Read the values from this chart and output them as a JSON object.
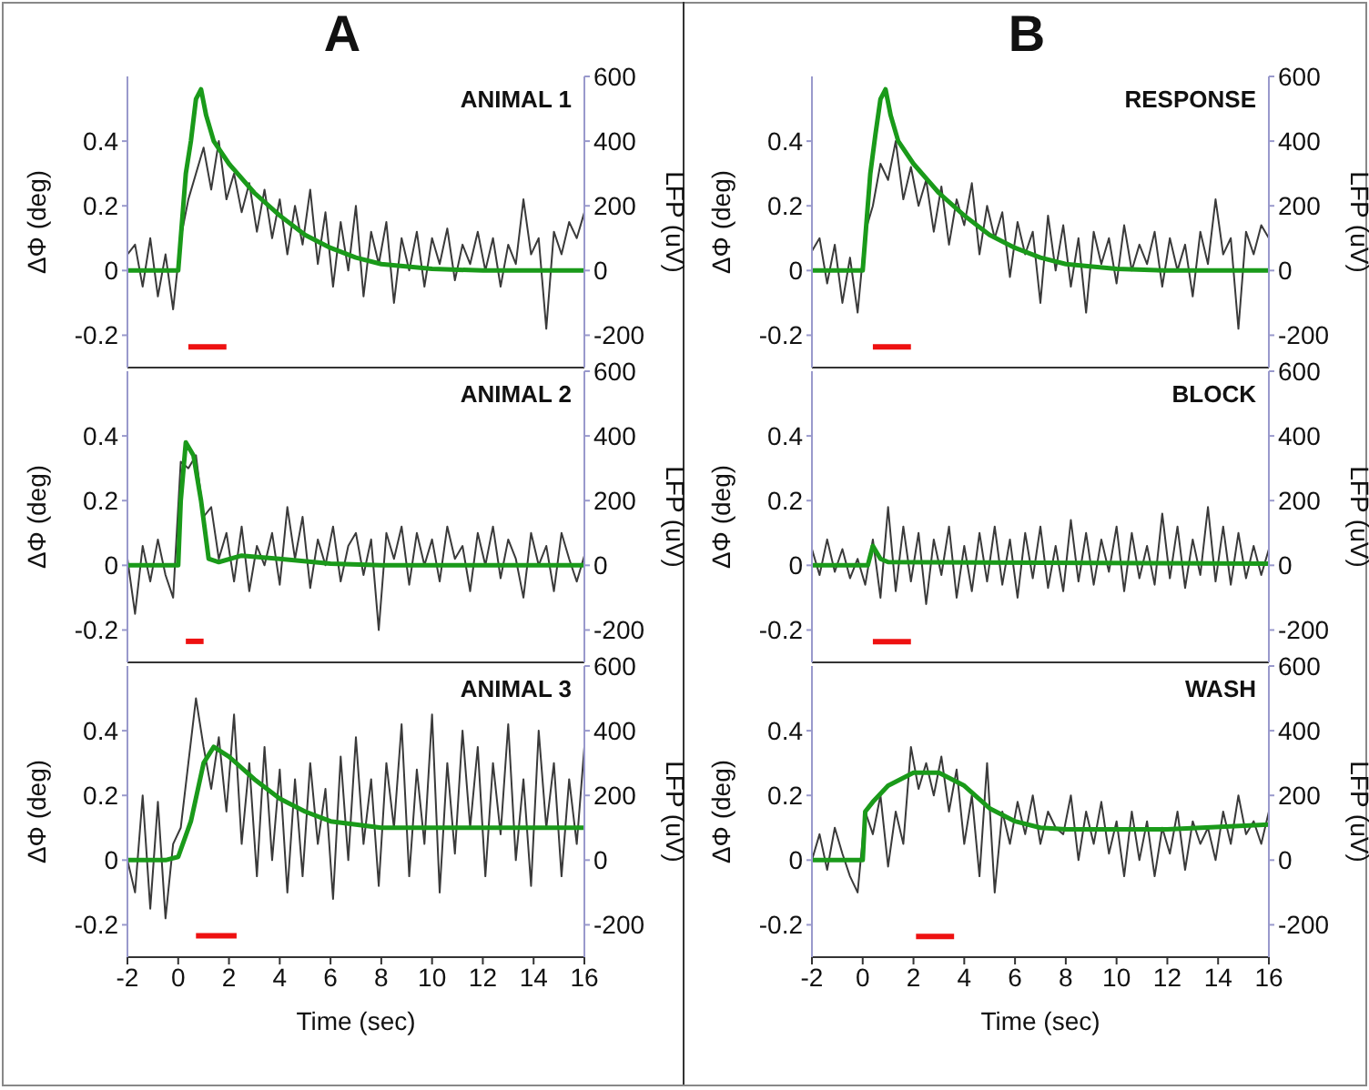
{
  "chart_data": [
    {
      "type": "line",
      "title": "A",
      "annotations": [
        "ANIMAL 1"
      ],
      "ylabel": "ΔΦ (deg)",
      "y2label": "LFP (uV)",
      "xlim": [
        -2,
        16
      ],
      "xticks": [
        -2,
        0,
        2,
        4,
        6,
        8,
        10,
        12,
        14,
        16
      ],
      "ylim": [
        -0.3,
        0.6
      ],
      "yticks": [
        -0.2,
        0,
        0.2,
        0.4
      ],
      "y2lim": [
        -300,
        600
      ],
      "y2ticks": [
        -200,
        0,
        200,
        400,
        600
      ],
      "tick_labels": "y",
      "x": [
        -2,
        -1.7,
        -1.4,
        -1.1,
        -0.8,
        -0.5,
        -0.2,
        0.1,
        0.4,
        0.7,
        1,
        1.3,
        1.6,
        1.9,
        2.2,
        2.5,
        2.8,
        3.1,
        3.4,
        3.7,
        4,
        4.3,
        4.6,
        4.9,
        5.2,
        5.5,
        5.8,
        6.1,
        6.4,
        6.7,
        7,
        7.3,
        7.6,
        7.9,
        8.2,
        8.5,
        8.8,
        9.1,
        9.4,
        9.7,
        10,
        10.3,
        10.6,
        10.9,
        11.2,
        11.5,
        11.8,
        12.1,
        12.4,
        12.7,
        13,
        13.3,
        13.6,
        13.9,
        14.2,
        14.5,
        14.8,
        15.1,
        15.4,
        15.7,
        16
      ],
      "series": [
        {
          "color": "#3a3a3a",
          "values": [
            0.05,
            0.08,
            -0.05,
            0.1,
            -0.08,
            0.05,
            -0.12,
            0.1,
            0.22,
            0.3,
            0.38,
            0.25,
            0.4,
            0.22,
            0.3,
            0.18,
            0.27,
            0.12,
            0.25,
            0.1,
            0.22,
            0.05,
            0.2,
            0.08,
            0.25,
            0.02,
            0.18,
            -0.05,
            0.15,
            0,
            0.2,
            -0.08,
            0.12,
            0.02,
            0.15,
            -0.1,
            0.1,
            0,
            0.12,
            -0.05,
            0.1,
            0.02,
            0.13,
            -0.03,
            0.08,
            0.02,
            0.12,
            0,
            0.1,
            -0.05,
            0.08,
            0.02,
            0.22,
            0.05,
            0.1,
            -0.18,
            0.12,
            0.05,
            0.15,
            0.1,
            0.18
          ]
        },
        {
          "color": "#1a9a1a",
          "axis": "y2",
          "x": [
            -2,
            0,
            0.1,
            0.3,
            0.5,
            0.7,
            0.9,
            1.1,
            1.4,
            2,
            3,
            4,
            5,
            6,
            7,
            8,
            10,
            12,
            14,
            16
          ],
          "values": [
            0,
            0,
            100,
            300,
            400,
            530,
            560,
            480,
            400,
            330,
            240,
            170,
            110,
            70,
            40,
            20,
            5,
            0,
            0,
            0
          ]
        },
        {
          "color": "#ee1111",
          "x": [
            0.4,
            1.9
          ],
          "values": [
            -0.236,
            -0.236
          ]
        }
      ]
    },
    {
      "type": "line",
      "title": "B",
      "annotations": [
        "RESPONSE"
      ],
      "ylabel": "ΔΦ (deg)",
      "y2label": "LFP (uV)",
      "xlim": [
        -2,
        16
      ],
      "xticks": [
        -2,
        0,
        2,
        4,
        6,
        8,
        10,
        12,
        14,
        16
      ],
      "ylim": [
        -0.3,
        0.6
      ],
      "yticks": [
        -0.2,
        0,
        0.2,
        0.4
      ],
      "y2lim": [
        -300,
        600
      ],
      "y2ticks": [
        -200,
        0,
        200,
        400,
        600
      ],
      "tick_labels": "y",
      "x": [
        -2,
        -1.7,
        -1.4,
        -1.1,
        -0.8,
        -0.5,
        -0.2,
        0.1,
        0.4,
        0.7,
        1,
        1.3,
        1.6,
        1.9,
        2.2,
        2.5,
        2.8,
        3.1,
        3.4,
        3.7,
        4,
        4.3,
        4.6,
        4.9,
        5.2,
        5.5,
        5.8,
        6.1,
        6.4,
        6.7,
        7,
        7.3,
        7.6,
        7.9,
        8.2,
        8.5,
        8.8,
        9.1,
        9.4,
        9.7,
        10,
        10.3,
        10.6,
        10.9,
        11.2,
        11.5,
        11.8,
        12.1,
        12.4,
        12.7,
        13,
        13.3,
        13.6,
        13.9,
        14.2,
        14.5,
        14.8,
        15.1,
        15.4,
        15.7,
        16
      ],
      "series": [
        {
          "color": "#3a3a3a",
          "values": [
            0.06,
            0.1,
            -0.04,
            0.08,
            -0.1,
            0.04,
            -0.13,
            0.12,
            0.2,
            0.33,
            0.28,
            0.4,
            0.22,
            0.32,
            0.2,
            0.28,
            0.12,
            0.26,
            0.08,
            0.22,
            0.14,
            0.27,
            0.05,
            0.2,
            0.1,
            0.18,
            -0.02,
            0.15,
            0.05,
            0.12,
            -0.1,
            0.17,
            0,
            0.14,
            -0.05,
            0.1,
            -0.13,
            0.12,
            0.02,
            0.1,
            -0.04,
            0.14,
            0,
            0.08,
            0.02,
            0.12,
            -0.05,
            0.1,
            0,
            0.08,
            -0.08,
            0.12,
            0.02,
            0.22,
            0.05,
            0.1,
            -0.18,
            0.12,
            0.05,
            0.14,
            0.1
          ]
        },
        {
          "color": "#1a9a1a",
          "axis": "y2",
          "x": [
            -2,
            0,
            0.1,
            0.3,
            0.5,
            0.7,
            0.9,
            1.1,
            1.4,
            2,
            3,
            4,
            5,
            6,
            7,
            8,
            10,
            12,
            14,
            16
          ],
          "values": [
            0,
            0,
            100,
            300,
            420,
            530,
            560,
            480,
            400,
            330,
            240,
            170,
            110,
            70,
            40,
            20,
            5,
            0,
            0,
            0
          ]
        },
        {
          "color": "#ee1111",
          "x": [
            0.4,
            1.9
          ],
          "values": [
            -0.236,
            -0.236
          ]
        }
      ]
    },
    {
      "type": "line",
      "annotations": [
        "ANIMAL 2"
      ],
      "ylabel": "ΔΦ (deg)",
      "y2label": "LFP (uV)",
      "xlim": [
        -2,
        16
      ],
      "xticks": [
        -2,
        0,
        2,
        4,
        6,
        8,
        10,
        12,
        14,
        16
      ],
      "ylim": [
        -0.3,
        0.6
      ],
      "yticks": [
        -0.2,
        0,
        0.2,
        0.4
      ],
      "y2lim": [
        -300,
        600
      ],
      "y2ticks": [
        -200,
        0,
        200,
        400,
        600
      ],
      "tick_labels": "y",
      "x": [
        -2,
        -1.7,
        -1.4,
        -1.1,
        -0.8,
        -0.5,
        -0.2,
        0.1,
        0.4,
        0.7,
        1,
        1.3,
        1.6,
        1.9,
        2.2,
        2.5,
        2.8,
        3.1,
        3.4,
        3.7,
        4,
        4.3,
        4.6,
        4.9,
        5.2,
        5.5,
        5.8,
        6.1,
        6.4,
        6.7,
        7,
        7.3,
        7.6,
        7.9,
        8.2,
        8.5,
        8.8,
        9.1,
        9.4,
        9.7,
        10,
        10.3,
        10.6,
        10.9,
        11.2,
        11.5,
        11.8,
        12.1,
        12.4,
        12.7,
        13,
        13.3,
        13.6,
        13.9,
        14.2,
        14.5,
        14.8,
        15.1,
        15.4,
        15.7,
        16
      ],
      "series": [
        {
          "color": "#3a3a3a",
          "values": [
            0.02,
            -0.15,
            0.06,
            -0.05,
            0.08,
            -0.03,
            -0.1,
            0.32,
            0.3,
            0.34,
            0.15,
            0.18,
            0.02,
            0.1,
            -0.05,
            0.12,
            -0.08,
            0.06,
            0,
            0.1,
            -0.06,
            0.18,
            0.02,
            0.15,
            -0.07,
            0.08,
            0,
            0.12,
            -0.05,
            0.06,
            0.1,
            -0.03,
            0.08,
            -0.2,
            0.1,
            0.02,
            0.12,
            -0.06,
            0.1,
            0,
            0.08,
            -0.05,
            0.12,
            0.02,
            0.06,
            -0.08,
            0.1,
            0,
            0.12,
            -0.04,
            0.08,
            0.02,
            -0.1,
            0.1,
            0,
            0.06,
            -0.08,
            0.1,
            0.02,
            -0.05,
            0.03
          ]
        },
        {
          "color": "#1a9a1a",
          "axis": "y2",
          "x": [
            -2,
            0,
            0.1,
            0.3,
            0.6,
            0.9,
            1.2,
            1.6,
            2.5,
            4,
            6,
            8,
            16
          ],
          "values": [
            0,
            0,
            200,
            380,
            340,
            200,
            20,
            10,
            30,
            20,
            5,
            0,
            0
          ]
        },
        {
          "color": "#ee1111",
          "x": [
            0.3,
            1
          ],
          "values": [
            -0.235,
            -0.235
          ]
        }
      ]
    },
    {
      "type": "line",
      "annotations": [
        "BLOCK"
      ],
      "ylabel": "ΔΦ (deg)",
      "y2label": "LFP (uV)",
      "xlim": [
        -2,
        16
      ],
      "xticks": [
        -2,
        0,
        2,
        4,
        6,
        8,
        10,
        12,
        14,
        16
      ],
      "ylim": [
        -0.3,
        0.6
      ],
      "yticks": [
        -0.2,
        0,
        0.2,
        0.4
      ],
      "y2lim": [
        -300,
        600
      ],
      "y2ticks": [
        -200,
        0,
        200,
        400,
        600
      ],
      "tick_labels": "y",
      "x": [
        -2,
        -1.7,
        -1.4,
        -1.1,
        -0.8,
        -0.5,
        -0.2,
        0.1,
        0.4,
        0.7,
        1,
        1.3,
        1.6,
        1.9,
        2.2,
        2.5,
        2.8,
        3.1,
        3.4,
        3.7,
        4,
        4.3,
        4.6,
        4.9,
        5.2,
        5.5,
        5.8,
        6.1,
        6.4,
        6.7,
        7,
        7.3,
        7.6,
        7.9,
        8.2,
        8.5,
        8.8,
        9.1,
        9.4,
        9.7,
        10,
        10.3,
        10.6,
        10.9,
        11.2,
        11.5,
        11.8,
        12.1,
        12.4,
        12.7,
        13,
        13.3,
        13.6,
        13.9,
        14.2,
        14.5,
        14.8,
        15.1,
        15.4,
        15.7,
        16
      ],
      "series": [
        {
          "color": "#3a3a3a",
          "values": [
            0.05,
            -0.03,
            0.08,
            -0.02,
            0.05,
            -0.04,
            0.02,
            -0.06,
            0.08,
            -0.1,
            0.18,
            -0.08,
            0.12,
            -0.05,
            0.1,
            -0.12,
            0.08,
            -0.03,
            0.12,
            -0.1,
            0.06,
            -0.08,
            0.1,
            -0.05,
            0.12,
            -0.06,
            0.08,
            -0.1,
            0.1,
            -0.04,
            0.12,
            -0.07,
            0.06,
            -0.08,
            0.14,
            -0.05,
            0.1,
            -0.06,
            0.08,
            -0.02,
            0.12,
            -0.08,
            0.1,
            -0.04,
            0.06,
            -0.06,
            0.16,
            -0.04,
            0.12,
            -0.07,
            0.08,
            -0.03,
            0.18,
            -0.05,
            0.12,
            -0.06,
            0.1,
            -0.04,
            0.06,
            -0.03,
            0.05
          ]
        },
        {
          "color": "#1a9a1a",
          "axis": "y2",
          "x": [
            -2,
            0,
            0.2,
            0.4,
            0.7,
            1,
            16
          ],
          "values": [
            0,
            0,
            0,
            60,
            20,
            10,
            5
          ]
        },
        {
          "color": "#ee1111",
          "x": [
            0.4,
            1.9
          ],
          "values": [
            -0.236,
            -0.236
          ]
        }
      ]
    },
    {
      "type": "line",
      "annotations": [
        "ANIMAL 3"
      ],
      "xlabel": "Time (sec)",
      "ylabel": "ΔΦ (deg)",
      "y2label": "LFP (uV)",
      "xlim": [
        -2,
        16
      ],
      "xticks": [
        -2,
        0,
        2,
        4,
        6,
        8,
        10,
        12,
        14,
        16
      ],
      "ylim": [
        -0.3,
        0.6
      ],
      "yticks": [
        -0.2,
        0,
        0.2,
        0.4
      ],
      "y2lim": [
        -300,
        600
      ],
      "y2ticks": [
        -200,
        0,
        200,
        400,
        600
      ],
      "x": [
        -2,
        -1.7,
        -1.4,
        -1.1,
        -0.8,
        -0.5,
        -0.2,
        0.1,
        0.4,
        0.7,
        1,
        1.3,
        1.6,
        1.9,
        2.2,
        2.5,
        2.8,
        3.1,
        3.4,
        3.7,
        4,
        4.3,
        4.6,
        4.9,
        5.2,
        5.5,
        5.8,
        6.1,
        6.4,
        6.7,
        7,
        7.3,
        7.6,
        7.9,
        8.2,
        8.5,
        8.8,
        9.1,
        9.4,
        9.7,
        10,
        10.3,
        10.6,
        10.9,
        11.2,
        11.5,
        11.8,
        12.1,
        12.4,
        12.7,
        13,
        13.3,
        13.6,
        13.9,
        14.2,
        14.5,
        14.8,
        15.1,
        15.4,
        15.7,
        16
      ],
      "series": [
        {
          "color": "#3a3a3a",
          "values": [
            0,
            -0.1,
            0.2,
            -0.15,
            0.18,
            -0.18,
            0.05,
            0.1,
            0.3,
            0.5,
            0.35,
            0.22,
            0.38,
            0.15,
            0.45,
            0.05,
            0.3,
            -0.05,
            0.35,
            0,
            0.28,
            -0.1,
            0.25,
            -0.05,
            0.3,
            0.05,
            0.22,
            -0.12,
            0.32,
            0,
            0.38,
            0.05,
            0.25,
            -0.08,
            0.3,
            0.1,
            0.42,
            -0.05,
            0.28,
            0.05,
            0.45,
            -0.1,
            0.3,
            0.02,
            0.4,
            0.1,
            0.35,
            -0.05,
            0.3,
            0.08,
            0.42,
            0,
            0.25,
            -0.08,
            0.4,
            0.1,
            0.3,
            -0.05,
            0.25,
            0.05,
            0.35
          ]
        },
        {
          "color": "#1a9a1a",
          "axis": "y2",
          "x": [
            -2,
            -0.5,
            0,
            0.5,
            1,
            1.4,
            2,
            3,
            4,
            5,
            6,
            8,
            10,
            16
          ],
          "values": [
            0,
            0,
            10,
            120,
            300,
            350,
            320,
            250,
            190,
            150,
            120,
            100,
            100,
            100
          ]
        },
        {
          "color": "#ee1111",
          "x": [
            0.7,
            2.3
          ],
          "values": [
            -0.234,
            -0.234
          ]
        }
      ]
    },
    {
      "type": "line",
      "annotations": [
        "WASH"
      ],
      "xlabel": "Time (sec)",
      "ylabel": "ΔΦ (deg)",
      "y2label": "LFP (uV)",
      "xlim": [
        -2,
        16
      ],
      "xticks": [
        -2,
        0,
        2,
        4,
        6,
        8,
        10,
        12,
        14,
        16
      ],
      "ylim": [
        -0.3,
        0.6
      ],
      "yticks": [
        -0.2,
        0,
        0.2,
        0.4
      ],
      "y2lim": [
        -300,
        600
      ],
      "y2ticks": [
        -200,
        0,
        200,
        400,
        600
      ],
      "x": [
        -2,
        -1.7,
        -1.4,
        -1.1,
        -0.8,
        -0.5,
        -0.2,
        0.1,
        0.4,
        0.7,
        1,
        1.3,
        1.6,
        1.9,
        2.2,
        2.5,
        2.8,
        3.1,
        3.4,
        3.7,
        4,
        4.3,
        4.6,
        4.9,
        5.2,
        5.5,
        5.8,
        6.1,
        6.4,
        6.7,
        7,
        7.3,
        7.6,
        7.9,
        8.2,
        8.5,
        8.8,
        9.1,
        9.4,
        9.7,
        10,
        10.3,
        10.6,
        10.9,
        11.2,
        11.5,
        11.8,
        12.1,
        12.4,
        12.7,
        13,
        13.3,
        13.6,
        13.9,
        14.2,
        14.5,
        14.8,
        15.1,
        15.4,
        15.7,
        16
      ],
      "series": [
        {
          "color": "#3a3a3a",
          "values": [
            0,
            0.08,
            -0.03,
            0.1,
            0.02,
            -0.05,
            -0.1,
            0.15,
            0.08,
            0.2,
            -0.02,
            0.15,
            0.05,
            0.35,
            0.22,
            0.3,
            0.2,
            0.32,
            0.15,
            0.28,
            0.05,
            0.2,
            -0.05,
            0.3,
            -0.1,
            0.15,
            0.05,
            0.18,
            0.08,
            0.2,
            0.05,
            0.15,
            0.1,
            0.08,
            0.2,
            0,
            0.15,
            0.05,
            0.18,
            0.02,
            0.12,
            -0.05,
            0.15,
            0,
            0.12,
            -0.05,
            0.1,
            0.02,
            0.15,
            -0.03,
            0.12,
            0.05,
            0.1,
            0,
            0.15,
            0.05,
            0.2,
            0.08,
            0.12,
            0.05,
            0.15
          ]
        },
        {
          "color": "#1a9a1a",
          "axis": "y2",
          "x": [
            -2,
            0,
            0.1,
            0.4,
            1,
            2,
            3,
            4,
            5,
            6,
            7,
            8,
            12,
            16
          ],
          "values": [
            0,
            0,
            150,
            180,
            230,
            270,
            270,
            230,
            160,
            120,
            100,
            95,
            95,
            110
          ]
        },
        {
          "color": "#ee1111",
          "x": [
            2.1,
            3.6
          ],
          "values": [
            -0.236,
            -0.236
          ]
        }
      ]
    }
  ]
}
